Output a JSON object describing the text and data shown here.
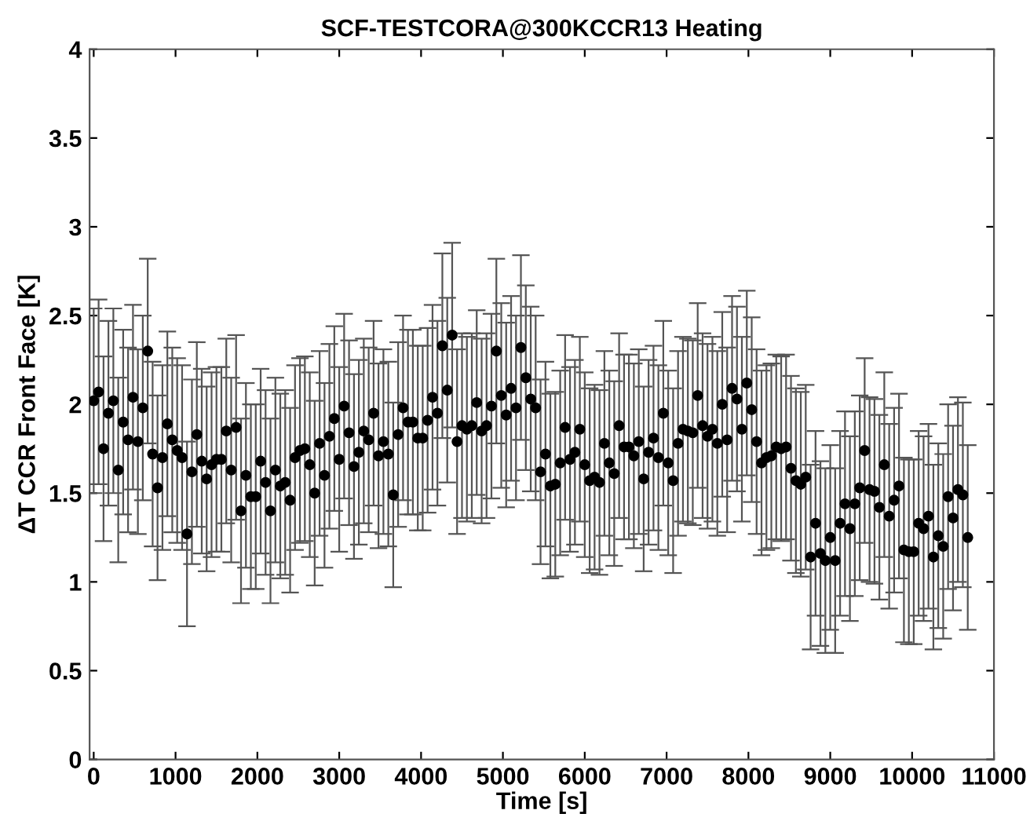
{
  "chart_data": {
    "type": "scatter",
    "title": "SCF-TESTCORA@300KCCR13 Heating",
    "xlabel": "Time [s]",
    "ylabel": "ΔT CCR Front Face [K]",
    "xlim": [
      -50,
      11000
    ],
    "xticks": [
      0,
      1000,
      2000,
      3000,
      4000,
      5000,
      6000,
      7000,
      8000,
      9000,
      10000,
      11000
    ],
    "ylim": [
      0,
      4
    ],
    "yticks": [
      0,
      0.5,
      1,
      1.5,
      2,
      2.5,
      3,
      3.5,
      4
    ],
    "grid": false,
    "marker": "circle",
    "legend": false,
    "x": [
      0,
      60,
      120,
      180,
      240,
      300,
      360,
      420,
      480,
      540,
      600,
      660,
      720,
      780,
      840,
      900,
      960,
      1020,
      1080,
      1140,
      1200,
      1260,
      1320,
      1380,
      1440,
      1500,
      1560,
      1620,
      1680,
      1740,
      1800,
      1860,
      1920,
      1980,
      2040,
      2100,
      2160,
      2220,
      2280,
      2340,
      2400,
      2460,
      2520,
      2580,
      2640,
      2700,
      2760,
      2820,
      2880,
      2940,
      3000,
      3060,
      3120,
      3180,
      3240,
      3300,
      3360,
      3420,
      3480,
      3540,
      3600,
      3660,
      3720,
      3780,
      3840,
      3900,
      3960,
      4020,
      4080,
      4140,
      4200,
      4260,
      4320,
      4380,
      4440,
      4500,
      4560,
      4620,
      4680,
      4740,
      4800,
      4860,
      4920,
      4980,
      5040,
      5100,
      5160,
      5220,
      5280,
      5340,
      5400,
      5460,
      5520,
      5580,
      5640,
      5700,
      5760,
      5820,
      5880,
      5940,
      6000,
      6060,
      6120,
      6180,
      6240,
      6300,
      6360,
      6420,
      6480,
      6540,
      6600,
      6660,
      6720,
      6780,
      6840,
      6900,
      6960,
      7020,
      7080,
      7140,
      7200,
      7260,
      7320,
      7380,
      7440,
      7500,
      7560,
      7620,
      7680,
      7740,
      7800,
      7860,
      7920,
      7980,
      8040,
      8100,
      8160,
      8220,
      8280,
      8340,
      8400,
      8460,
      8520,
      8580,
      8640,
      8700,
      8760,
      8820,
      8880,
      8940,
      9000,
      9060,
      9120,
      9180,
      9240,
      9300,
      9360,
      9420,
      9480,
      9540,
      9600,
      9660,
      9720,
      9780,
      9840,
      9900,
      9960,
      10020,
      10080,
      10140,
      10200,
      10260,
      10320,
      10380,
      10440,
      10500,
      10560,
      10620,
      10680
    ],
    "series": [
      {
        "color": "#000000",
        "values": [
          2.02,
          2.07,
          1.75,
          1.95,
          2.02,
          1.63,
          1.9,
          1.8,
          2.04,
          1.79,
          1.98,
          2.3,
          1.72,
          1.53,
          1.7,
          1.89,
          1.8,
          1.74,
          1.7,
          1.27,
          1.62,
          1.83,
          1.68,
          1.58,
          1.66,
          1.69,
          1.69,
          1.85,
          1.63,
          1.87,
          1.4,
          1.6,
          1.48,
          1.48,
          1.68,
          1.56,
          1.4,
          1.63,
          1.54,
          1.56,
          1.46,
          1.7,
          1.74,
          1.75,
          1.66,
          1.5,
          1.78,
          1.6,
          1.82,
          1.92,
          1.69,
          1.99,
          1.84,
          1.65,
          1.73,
          1.85,
          1.8,
          1.95,
          1.71,
          1.79,
          1.72,
          1.49,
          1.83,
          1.98,
          1.9,
          1.9,
          1.81,
          1.81,
          1.91,
          2.04,
          1.95,
          2.33,
          2.08,
          2.39,
          1.79,
          1.88,
          1.86,
          1.88,
          2.01,
          1.85,
          1.88,
          1.99,
          2.3,
          2.05,
          1.94,
          2.09,
          1.98,
          2.32,
          2.15,
          2.03,
          1.98,
          1.62,
          1.72,
          1.54,
          1.55,
          1.67,
          1.87,
          1.69,
          1.73,
          1.86,
          1.66,
          1.57,
          1.59,
          1.56,
          1.78,
          1.67,
          1.61,
          1.88,
          1.76,
          1.76,
          1.71,
          1.79,
          1.58,
          1.73,
          1.81,
          1.7,
          1.95,
          1.67,
          1.57,
          1.78,
          1.86,
          1.85,
          1.84,
          2.05,
          1.88,
          1.82,
          1.86,
          1.78,
          2.0,
          1.8,
          2.09,
          2.03,
          1.86,
          2.12,
          1.97,
          1.79,
          1.67,
          1.7,
          1.71,
          1.76,
          1.75,
          1.76,
          1.64,
          1.57,
          1.55,
          1.59,
          1.14,
          1.33,
          1.16,
          1.12,
          1.25,
          1.12,
          1.33,
          1.44,
          1.3,
          1.44,
          1.53,
          1.74,
          1.52,
          1.51,
          1.42,
          1.66,
          1.37,
          1.46,
          1.54,
          1.18,
          1.17,
          1.17,
          1.33,
          1.3,
          1.37,
          1.14,
          1.26,
          1.2,
          1.48,
          1.36,
          1.52,
          1.49,
          1.25
        ],
        "errors": [
          0.52,
          0.52,
          0.52,
          0.52,
          0.52,
          0.52,
          0.52,
          0.52,
          0.52,
          0.52,
          0.52,
          0.52,
          0.52,
          0.52,
          0.52,
          0.52,
          0.52,
          0.52,
          0.52,
          0.52,
          0.52,
          0.52,
          0.52,
          0.52,
          0.52,
          0.52,
          0.52,
          0.52,
          0.52,
          0.52,
          0.52,
          0.52,
          0.52,
          0.52,
          0.52,
          0.52,
          0.52,
          0.52,
          0.52,
          0.52,
          0.52,
          0.52,
          0.52,
          0.52,
          0.52,
          0.52,
          0.52,
          0.52,
          0.52,
          0.52,
          0.52,
          0.52,
          0.52,
          0.52,
          0.52,
          0.52,
          0.52,
          0.52,
          0.52,
          0.52,
          0.52,
          0.52,
          0.52,
          0.52,
          0.52,
          0.52,
          0.52,
          0.52,
          0.52,
          0.52,
          0.52,
          0.52,
          0.52,
          0.52,
          0.52,
          0.52,
          0.52,
          0.52,
          0.52,
          0.52,
          0.52,
          0.52,
          0.52,
          0.52,
          0.52,
          0.52,
          0.52,
          0.52,
          0.52,
          0.52,
          0.52,
          0.52,
          0.52,
          0.52,
          0.52,
          0.52,
          0.52,
          0.52,
          0.52,
          0.52,
          0.52,
          0.52,
          0.52,
          0.52,
          0.52,
          0.52,
          0.52,
          0.52,
          0.52,
          0.52,
          0.52,
          0.52,
          0.52,
          0.52,
          0.52,
          0.52,
          0.52,
          0.52,
          0.52,
          0.52,
          0.52,
          0.52,
          0.52,
          0.52,
          0.52,
          0.52,
          0.52,
          0.52,
          0.52,
          0.52,
          0.52,
          0.52,
          0.52,
          0.52,
          0.52,
          0.52,
          0.52,
          0.52,
          0.52,
          0.52,
          0.52,
          0.52,
          0.52,
          0.52,
          0.52,
          0.52,
          0.52,
          0.52,
          0.52,
          0.52,
          0.52,
          0.52,
          0.52,
          0.52,
          0.52,
          0.52,
          0.52,
          0.52,
          0.52,
          0.52,
          0.52,
          0.52,
          0.52,
          0.52,
          0.52,
          0.52,
          0.52,
          0.52,
          0.52,
          0.52,
          0.52,
          0.52,
          0.52,
          0.52,
          0.52,
          0.52,
          0.52,
          0.52,
          0.52
        ]
      }
    ]
  }
}
